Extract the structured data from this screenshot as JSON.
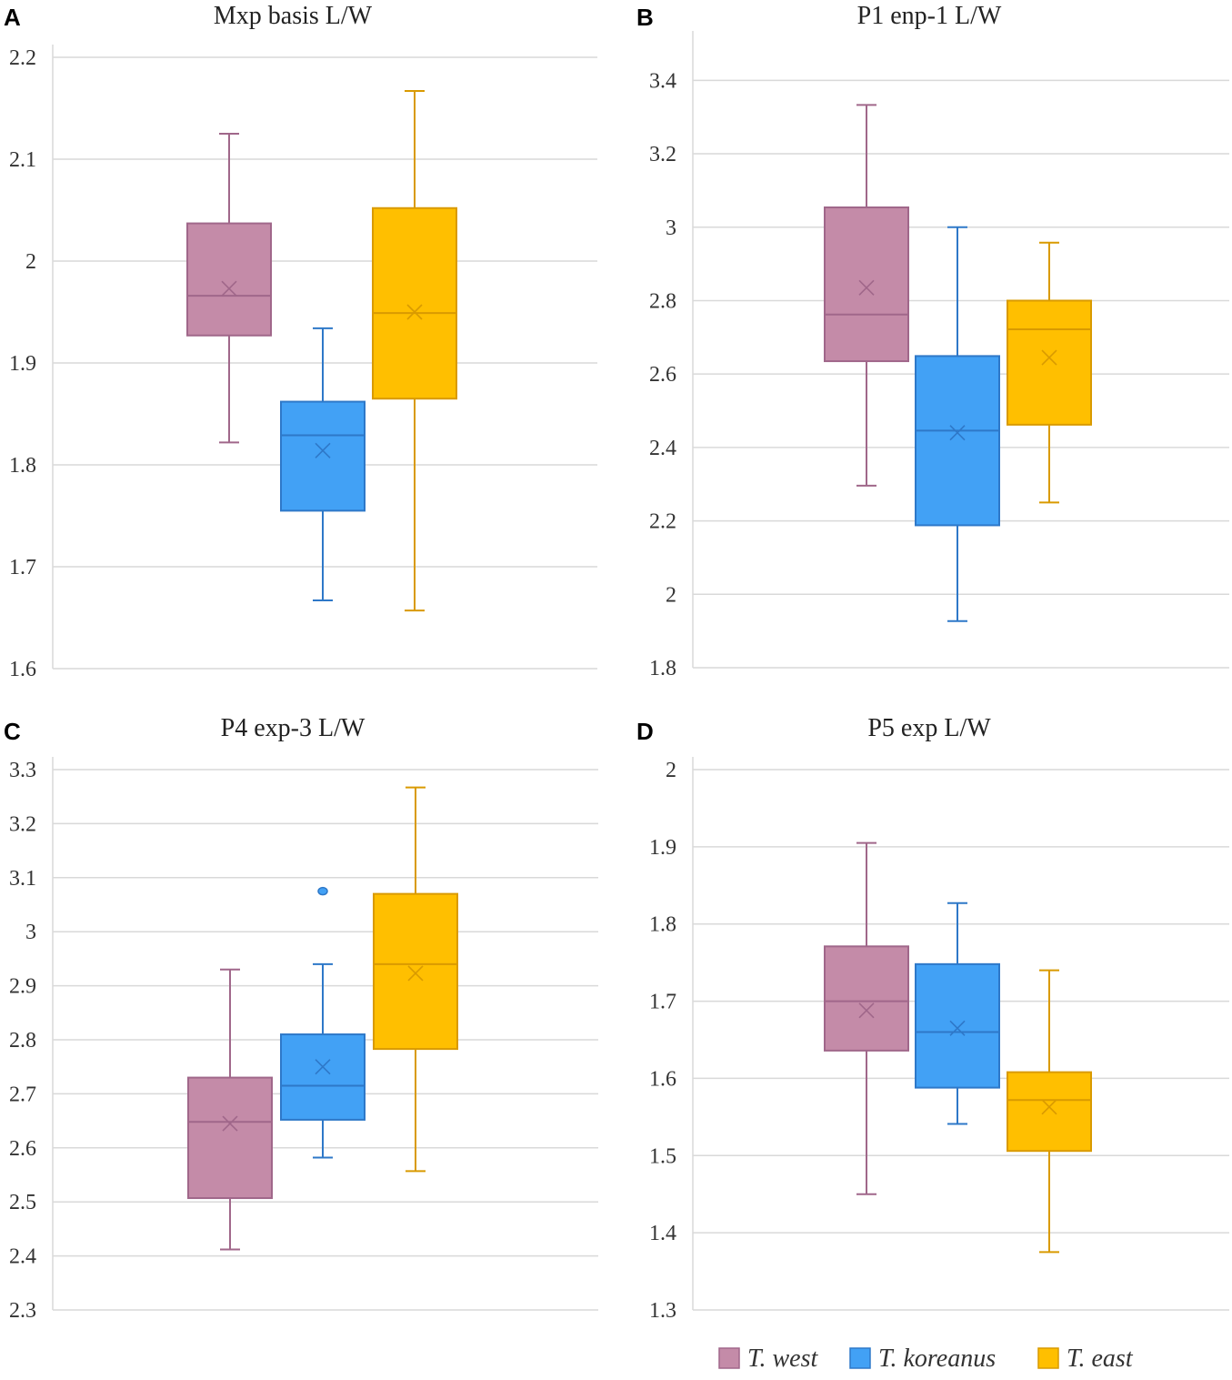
{
  "legend": [
    {
      "label": "T. west",
      "fill": "#C48BA8",
      "stroke": "#A0678A"
    },
    {
      "label": "T. koreanus",
      "fill": "#42A1F5",
      "stroke": "#2E78C8"
    },
    {
      "label": "T. east",
      "fill": "#FFBF00",
      "stroke": "#D99A00"
    }
  ],
  "chart_data": [
    {
      "panel": "A",
      "type": "box",
      "title": "Mxp basis L/W",
      "ylim": [
        1.6,
        2.2
      ],
      "yticks": [
        "1.6",
        "1.7",
        "1.8",
        "1.9",
        "2",
        "2.1",
        "2.2"
      ],
      "series": [
        {
          "name": "T. west",
          "min": 1.822,
          "q1": 1.927,
          "median": 1.966,
          "q3": 2.037,
          "max": 2.125,
          "mean": 1.973,
          "outliers": []
        },
        {
          "name": "T. koreanus",
          "min": 1.667,
          "q1": 1.755,
          "median": 1.829,
          "q3": 1.862,
          "max": 1.934,
          "mean": 1.814,
          "outliers": []
        },
        {
          "name": "T. east",
          "min": 1.657,
          "q1": 1.865,
          "median": 1.949,
          "q3": 2.052,
          "max": 2.167,
          "mean": 1.95,
          "outliers": []
        }
      ]
    },
    {
      "panel": "B",
      "type": "box",
      "title": "P1 enp-1 L/W",
      "ylim": [
        1.8,
        3.5
      ],
      "yticks": [
        "1.8",
        "2",
        "2.2",
        "2.4",
        "2.6",
        "2.8",
        "3",
        "3.2",
        "3.4"
      ],
      "series": [
        {
          "name": "T. west",
          "min": 2.296,
          "q1": 2.635,
          "median": 2.762,
          "q3": 3.054,
          "max": 3.333,
          "mean": 2.835,
          "outliers": []
        },
        {
          "name": "T. koreanus",
          "min": 1.927,
          "q1": 2.188,
          "median": 2.446,
          "q3": 2.649,
          "max": 3.0,
          "mean": 2.44,
          "outliers": []
        },
        {
          "name": "T. east",
          "min": 2.25,
          "q1": 2.462,
          "median": 2.722,
          "q3": 2.8,
          "max": 2.958,
          "mean": 2.645,
          "outliers": []
        }
      ]
    },
    {
      "panel": "C",
      "type": "box",
      "title": "P4 exp-3 L/W",
      "ylim": [
        2.3,
        3.3
      ],
      "yticks": [
        "2.3",
        "2.4",
        "2.5",
        "2.6",
        "2.7",
        "2.8",
        "2.9",
        "3",
        "3.1",
        "3.2",
        "3.3"
      ],
      "series": [
        {
          "name": "T. west",
          "min": 2.412,
          "q1": 2.507,
          "median": 2.648,
          "q3": 2.73,
          "max": 2.93,
          "mean": 2.645,
          "outliers": []
        },
        {
          "name": "T. koreanus",
          "min": 2.582,
          "q1": 2.652,
          "median": 2.715,
          "q3": 2.81,
          "max": 2.94,
          "mean": 2.75,
          "outliers": [
            3.075
          ]
        },
        {
          "name": "T. east",
          "min": 2.557,
          "q1": 2.783,
          "median": 2.94,
          "q3": 3.07,
          "max": 3.267,
          "mean": 2.923,
          "outliers": []
        }
      ]
    },
    {
      "panel": "D",
      "type": "box",
      "title": "P5 exp L/W",
      "ylim": [
        1.3,
        2.0
      ],
      "yticks": [
        "1.3",
        "1.4",
        "1.5",
        "1.6",
        "1.7",
        "1.8",
        "1.9",
        "2"
      ],
      "series": [
        {
          "name": "T. west",
          "min": 1.45,
          "q1": 1.636,
          "median": 1.7,
          "q3": 1.771,
          "max": 1.905,
          "mean": 1.688,
          "outliers": []
        },
        {
          "name": "T. koreanus",
          "min": 1.541,
          "q1": 1.588,
          "median": 1.66,
          "q3": 1.748,
          "max": 1.827,
          "mean": 1.665,
          "outliers": []
        },
        {
          "name": "T. east",
          "min": 1.375,
          "q1": 1.506,
          "median": 1.572,
          "q3": 1.608,
          "max": 1.74,
          "mean": 1.563,
          "outliers": []
        }
      ]
    }
  ]
}
